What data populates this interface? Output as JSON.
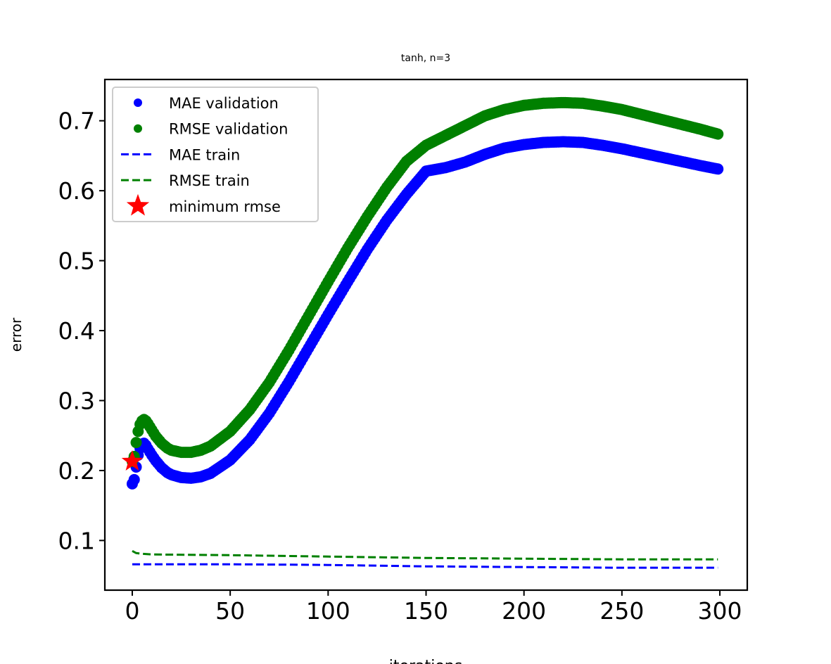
{
  "chart_data": {
    "type": "scatter",
    "title": "tanh, n=3",
    "xlabel": "iterations",
    "ylabel": "error",
    "xlim": [
      -14,
      314
    ],
    "ylim": [
      0.029,
      0.759
    ],
    "xticks": [
      0,
      50,
      100,
      150,
      200,
      250,
      300
    ],
    "yticks": [
      0.1,
      0.2,
      0.3,
      0.4,
      0.5,
      0.6,
      0.7
    ],
    "xtick_labels": [
      "0",
      "50",
      "100",
      "150",
      "200",
      "250",
      "300"
    ],
    "ytick_labels": [
      "0.1",
      "0.2",
      "0.3",
      "0.4",
      "0.5",
      "0.6",
      "0.7"
    ],
    "grid": false,
    "legend_position": "top-left",
    "legend": [
      {
        "label": "MAE validation",
        "kind": "dot",
        "color": "#0000ff"
      },
      {
        "label": "RMSE validation",
        "kind": "dot",
        "color": "#008000"
      },
      {
        "label": "MAE train",
        "kind": "dashed",
        "color": "#0000ff"
      },
      {
        "label": "RMSE train",
        "kind": "dashed",
        "color": "#008000"
      },
      {
        "label": "minimum rmse",
        "kind": "star",
        "color": "#ff0000"
      }
    ],
    "series": [
      {
        "name": "MAE validation",
        "style": "dots",
        "color": "#0000ff",
        "x": [
          0,
          1,
          2,
          3,
          4,
          5,
          6,
          7,
          8,
          10,
          12,
          15,
          18,
          20,
          25,
          30,
          35,
          40,
          50,
          60,
          70,
          80,
          90,
          100,
          110,
          120,
          130,
          140,
          150,
          160,
          170,
          180,
          190,
          200,
          210,
          220,
          230,
          240,
          250,
          260,
          270,
          280,
          290,
          299
        ],
        "y": [
          0.181,
          0.187,
          0.205,
          0.222,
          0.232,
          0.238,
          0.239,
          0.236,
          0.231,
          0.222,
          0.214,
          0.204,
          0.197,
          0.194,
          0.19,
          0.189,
          0.191,
          0.196,
          0.215,
          0.244,
          0.282,
          0.327,
          0.375,
          0.423,
          0.47,
          0.516,
          0.558,
          0.595,
          0.628,
          0.633,
          0.641,
          0.652,
          0.661,
          0.666,
          0.669,
          0.67,
          0.669,
          0.665,
          0.66,
          0.654,
          0.648,
          0.642,
          0.636,
          0.631
        ]
      },
      {
        "name": "RMSE validation",
        "style": "dots",
        "color": "#008000",
        "x": [
          0,
          1,
          2,
          3,
          4,
          5,
          6,
          7,
          8,
          10,
          12,
          15,
          18,
          20,
          25,
          30,
          35,
          40,
          50,
          60,
          70,
          80,
          90,
          100,
          110,
          120,
          130,
          140,
          150,
          160,
          170,
          180,
          190,
          200,
          210,
          220,
          230,
          240,
          250,
          260,
          270,
          280,
          290,
          299
        ],
        "y": [
          0.213,
          0.22,
          0.24,
          0.256,
          0.266,
          0.271,
          0.273,
          0.271,
          0.267,
          0.258,
          0.249,
          0.239,
          0.232,
          0.229,
          0.226,
          0.226,
          0.229,
          0.235,
          0.256,
          0.287,
          0.326,
          0.372,
          0.421,
          0.47,
          0.518,
          0.563,
          0.605,
          0.642,
          0.665,
          0.679,
          0.693,
          0.707,
          0.716,
          0.722,
          0.725,
          0.726,
          0.725,
          0.721,
          0.716,
          0.709,
          0.702,
          0.695,
          0.688,
          0.681
        ]
      },
      {
        "name": "MAE train",
        "style": "dashed",
        "color": "#0000ff",
        "x": [
          0,
          10,
          50,
          100,
          150,
          200,
          250,
          299
        ],
        "y": [
          0.066,
          0.066,
          0.066,
          0.065,
          0.063,
          0.062,
          0.061,
          0.061
        ]
      },
      {
        "name": "RMSE train",
        "style": "dashed",
        "color": "#008000",
        "x": [
          0,
          2,
          5,
          10,
          50,
          100,
          150,
          200,
          250,
          299
        ],
        "y": [
          0.085,
          0.082,
          0.081,
          0.08,
          0.079,
          0.077,
          0.075,
          0.074,
          0.073,
          0.073
        ]
      }
    ],
    "markers": [
      {
        "name": "minimum rmse",
        "shape": "star",
        "color": "#ff0000",
        "x": 0,
        "y": 0.213
      }
    ]
  }
}
